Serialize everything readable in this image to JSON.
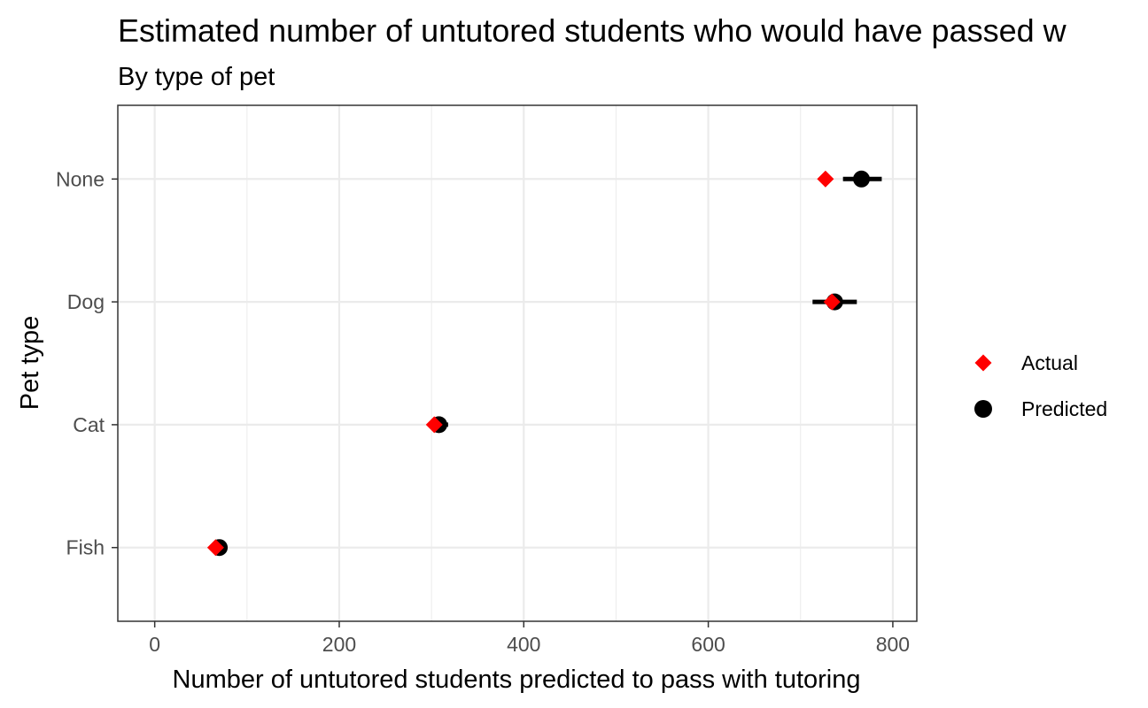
{
  "chart_data": {
    "type": "scatter",
    "title": "Estimated number of untutored students who would have passed w",
    "subtitle": "By type of pet",
    "xlabel": "Number of untutored students predicted to pass with tutoring",
    "ylabel": "Pet type",
    "xlim": [
      -40,
      826
    ],
    "x_ticks": [
      0,
      200,
      400,
      600,
      800
    ],
    "x_tick_labels": [
      "0",
      "200",
      "400",
      "600",
      "800"
    ],
    "categories": [
      "Fish",
      "Cat",
      "Dog",
      "None"
    ],
    "grid": true,
    "legend_position": "right",
    "series": [
      {
        "name": "Actual",
        "marker": "diamond",
        "color": "#ff0000",
        "values": [
          66,
          303,
          734,
          727
        ]
      },
      {
        "name": "Predicted",
        "marker": "circle",
        "color": "#000000",
        "values": [
          70,
          308,
          737,
          766
        ],
        "error_low": [
          64,
          298,
          713,
          746
        ],
        "error_high": [
          76,
          318,
          761,
          788
        ]
      }
    ]
  }
}
